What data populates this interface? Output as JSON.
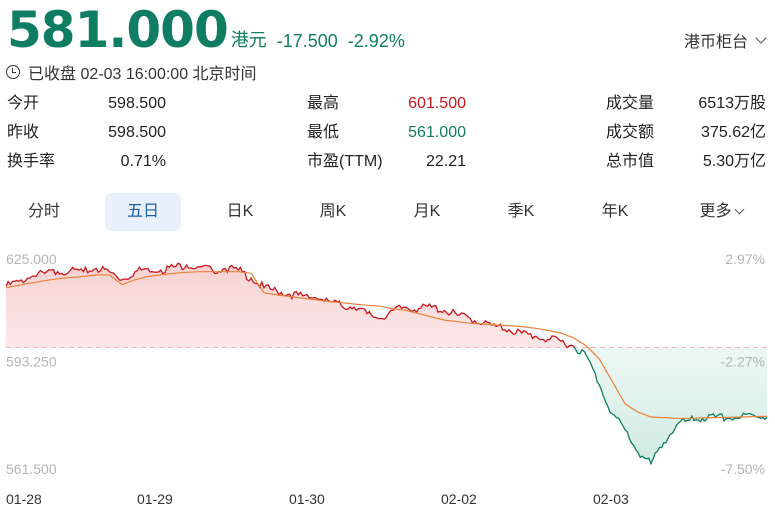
{
  "quote": {
    "price": "581.000",
    "currency": "港元",
    "change": "-17.500",
    "change_pct": "-2.92%"
  },
  "market_select": {
    "label": "港币柜台"
  },
  "status": {
    "text": "已收盘 02-03 16:00:00 北京时间"
  },
  "stats": {
    "open": {
      "label": "今开",
      "value": "598.500"
    },
    "prev_close": {
      "label": "昨收",
      "value": "598.500"
    },
    "turnover_rate": {
      "label": "换手率",
      "value": "0.71%"
    },
    "high": {
      "label": "最高",
      "value": "601.500"
    },
    "low": {
      "label": "最低",
      "value": "561.000"
    },
    "pe": {
      "label": "市盈(TTM)",
      "value": "22.21"
    },
    "volume": {
      "label": "成交量",
      "value": "6513万股"
    },
    "amount": {
      "label": "成交额",
      "value": "375.62亿"
    },
    "market_cap": {
      "label": "总市值",
      "value": "5.30万亿"
    }
  },
  "tabs": [
    {
      "label": "分时"
    },
    {
      "label": "五日"
    },
    {
      "label": "日K"
    },
    {
      "label": "周K"
    },
    {
      "label": "月K"
    },
    {
      "label": "季K"
    },
    {
      "label": "年K"
    },
    {
      "label": "更多"
    }
  ],
  "colors": {
    "up": "#c9161c",
    "down": "#0e7d62",
    "avg_line": "#e8823a",
    "tab_active_bg": "#e8f0fb"
  },
  "chart_data": {
    "type": "line",
    "x_ticks": [
      "01-28",
      "01-29",
      "01-30",
      "02-02",
      "02-03"
    ],
    "y_ticks": [
      "625.000",
      "593.250",
      "561.500"
    ],
    "y_right_ticks": [
      "2.97%",
      "-2.27%",
      "-7.50%"
    ],
    "ylim": [
      561.5,
      625.0
    ],
    "prev_close": 598.5,
    "series": [
      {
        "values": [
          617.5,
          619.0,
          620.5,
          621.5,
          622.0,
          622.5,
          622.0,
          623.0,
          622.0,
          619.5,
          622.0,
          623.0,
          622.5,
          623.5,
          624.0,
          623.5,
          622.5,
          623.0,
          622.5,
          620.0,
          617.0,
          616.0,
          615.0,
          614.5,
          614.0,
          613.0,
          611.5,
          611.0,
          609.0,
          607.5,
          610.0,
          611.0,
          610.5,
          611.0,
          610.0,
          608.5,
          607.5,
          606.0,
          605.0,
          604.0,
          603.0,
          602.0,
          601.0,
          600.5,
          599.0,
          596.0,
          587.0,
          578.0,
          573.0,
          566.0,
          562.5,
          569.0,
          574.5,
          576.0,
          576.5,
          577.0,
          576.5,
          577.0,
          577.5,
          577.0
        ]
      },
      {
        "values": [
          617.0,
          617.8,
          618.5,
          619.2,
          619.8,
          620.2,
          620.5,
          621.0,
          621.0,
          618.0,
          619.5,
          620.5,
          621.0,
          621.5,
          621.8,
          622.0,
          622.0,
          622.0,
          622.0,
          621.5,
          615.5,
          614.8,
          614.3,
          613.8,
          613.3,
          612.8,
          612.4,
          612.0,
          611.6,
          611.3,
          610.5,
          610.0,
          609.0,
          608.0,
          607.0,
          606.5,
          606.0,
          605.8,
          605.5,
          605.3,
          605.0,
          604.5,
          603.8,
          603.0,
          601.5,
          599.0,
          595.0,
          588.0,
          581.0,
          578.5,
          577.0,
          576.8,
          576.6,
          576.6,
          576.7,
          576.8,
          576.9,
          577.0,
          577.1,
          577.2
        ]
      }
    ]
  }
}
